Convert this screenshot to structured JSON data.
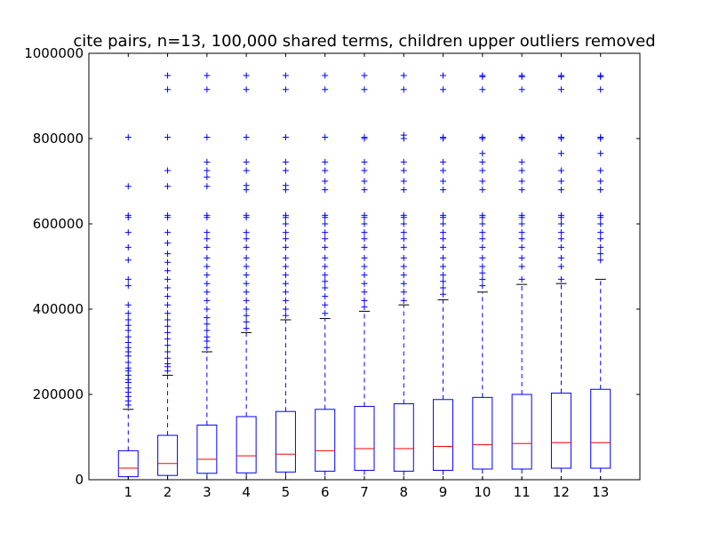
{
  "chart_data": {
    "type": "box",
    "title": "cite pairs, n=13, 100,000 shared terms, children upper outliers removed",
    "xlabel": "",
    "ylabel": "",
    "categories": [
      "1",
      "2",
      "3",
      "4",
      "5",
      "6",
      "7",
      "8",
      "9",
      "10",
      "11",
      "12",
      "13"
    ],
    "ylim": [
      0,
      1000000
    ],
    "yticks": [
      0,
      200000,
      400000,
      600000,
      800000,
      1000000
    ],
    "ytick_labels": [
      "0",
      "200000",
      "400000",
      "600000",
      "800000",
      "1000000"
    ],
    "grid": false,
    "colors": {
      "box": "#0000ff",
      "median": "#ff0000",
      "whisker": "#0000ff",
      "cap": "#000000",
      "flier": "#0000ff",
      "axes": "#000000",
      "background": "#ffffff"
    },
    "boxes": [
      {
        "category": "1",
        "whisker_low": 0,
        "q1": 7000,
        "median": 27000,
        "q3": 68000,
        "whisker_high": 165000,
        "fliers": [
          175000,
          185000,
          195000,
          205000,
          215000,
          228000,
          235000,
          245000,
          255000,
          262000,
          275000,
          290000,
          300000,
          310000,
          322000,
          335000,
          350000,
          362000,
          375000,
          390000,
          410000,
          455000,
          470000,
          515000,
          545000,
          580000,
          615000,
          620000,
          688000,
          803000
        ]
      },
      {
        "category": "2",
        "whisker_low": 0,
        "q1": 10000,
        "median": 38000,
        "q3": 104000,
        "whisker_high": 245000,
        "fliers": [
          255000,
          265000,
          272000,
          285000,
          300000,
          315000,
          330000,
          345000,
          360000,
          375000,
          390000,
          410000,
          430000,
          450000,
          470000,
          490000,
          510000,
          530000,
          555000,
          580000,
          615000,
          620000,
          688000,
          725000,
          803000,
          915000,
          948000
        ]
      },
      {
        "category": "3",
        "whisker_low": 0,
        "q1": 15000,
        "median": 48000,
        "q3": 128000,
        "whisker_high": 300000,
        "fliers": [
          310000,
          325000,
          335000,
          350000,
          365000,
          380000,
          400000,
          420000,
          440000,
          460000,
          480000,
          500000,
          520000,
          545000,
          565000,
          580000,
          615000,
          620000,
          688000,
          710000,
          725000,
          745000,
          803000,
          915000,
          948000
        ]
      },
      {
        "category": "4",
        "whisker_low": 0,
        "q1": 16000,
        "median": 56000,
        "q3": 148000,
        "whisker_high": 345000,
        "fliers": [
          355000,
          370000,
          385000,
          400000,
          420000,
          440000,
          460000,
          480000,
          500000,
          520000,
          545000,
          565000,
          580000,
          615000,
          620000,
          680000,
          690000,
          725000,
          745000,
          803000,
          915000,
          948000
        ]
      },
      {
        "category": "5",
        "whisker_low": 0,
        "q1": 18000,
        "median": 60000,
        "q3": 160000,
        "whisker_high": 375000,
        "fliers": [
          385000,
          400000,
          420000,
          440000,
          460000,
          480000,
          500000,
          520000,
          545000,
          565000,
          580000,
          600000,
          615000,
          620000,
          680000,
          690000,
          725000,
          745000,
          803000,
          915000,
          948000
        ]
      },
      {
        "category": "6",
        "whisker_low": 0,
        "q1": 20000,
        "median": 68000,
        "q3": 165000,
        "whisker_high": 378000,
        "fliers": [
          390000,
          410000,
          430000,
          450000,
          465000,
          480000,
          500000,
          520000,
          545000,
          565000,
          580000,
          600000,
          615000,
          620000,
          680000,
          700000,
          725000,
          745000,
          803000,
          915000,
          948000
        ]
      },
      {
        "category": "7",
        "whisker_low": 0,
        "q1": 22000,
        "median": 73000,
        "q3": 172000,
        "whisker_high": 395000,
        "fliers": [
          405000,
          420000,
          440000,
          460000,
          480000,
          500000,
          520000,
          545000,
          565000,
          580000,
          600000,
          615000,
          620000,
          680000,
          700000,
          725000,
          745000,
          800000,
          803000,
          915000,
          948000
        ]
      },
      {
        "category": "8",
        "whisker_low": 0,
        "q1": 20000,
        "median": 73000,
        "q3": 178000,
        "whisker_high": 410000,
        "fliers": [
          420000,
          440000,
          460000,
          480000,
          500000,
          520000,
          545000,
          565000,
          580000,
          600000,
          615000,
          620000,
          680000,
          700000,
          725000,
          745000,
          800000,
          808000,
          915000,
          948000
        ]
      },
      {
        "category": "9",
        "whisker_low": 0,
        "q1": 22000,
        "median": 78000,
        "q3": 188000,
        "whisker_high": 422000,
        "fliers": [
          435000,
          450000,
          465000,
          480000,
          500000,
          520000,
          545000,
          565000,
          580000,
          600000,
          615000,
          620000,
          680000,
          700000,
          725000,
          745000,
          800000,
          803000,
          915000,
          948000
        ]
      },
      {
        "category": "10",
        "whisker_low": 0,
        "q1": 25000,
        "median": 82000,
        "q3": 193000,
        "whisker_high": 440000,
        "fliers": [
          455000,
          470000,
          485000,
          500000,
          520000,
          545000,
          565000,
          580000,
          600000,
          615000,
          620000,
          680000,
          700000,
          725000,
          745000,
          765000,
          800000,
          803000,
          915000,
          945000,
          948000
        ]
      },
      {
        "category": "11",
        "whisker_low": 0,
        "q1": 25000,
        "median": 85000,
        "q3": 200000,
        "whisker_high": 458000,
        "fliers": [
          470000,
          500000,
          520000,
          545000,
          565000,
          580000,
          600000,
          615000,
          620000,
          680000,
          700000,
          725000,
          745000,
          800000,
          803000,
          915000,
          945000,
          948000
        ]
      },
      {
        "category": "12",
        "whisker_low": 0,
        "q1": 27000,
        "median": 87000,
        "q3": 203000,
        "whisker_high": 460000,
        "fliers": [
          470000,
          500000,
          520000,
          545000,
          565000,
          580000,
          600000,
          615000,
          620000,
          680000,
          700000,
          725000,
          765000,
          800000,
          803000,
          915000,
          945000,
          948000
        ]
      },
      {
        "category": "13",
        "whisker_low": 0,
        "q1": 27000,
        "median": 87000,
        "q3": 212000,
        "whisker_high": 470000,
        "fliers": [
          515000,
          530000,
          545000,
          565000,
          580000,
          600000,
          615000,
          620000,
          680000,
          700000,
          725000,
          765000,
          800000,
          803000,
          915000,
          945000,
          948000
        ]
      }
    ]
  }
}
